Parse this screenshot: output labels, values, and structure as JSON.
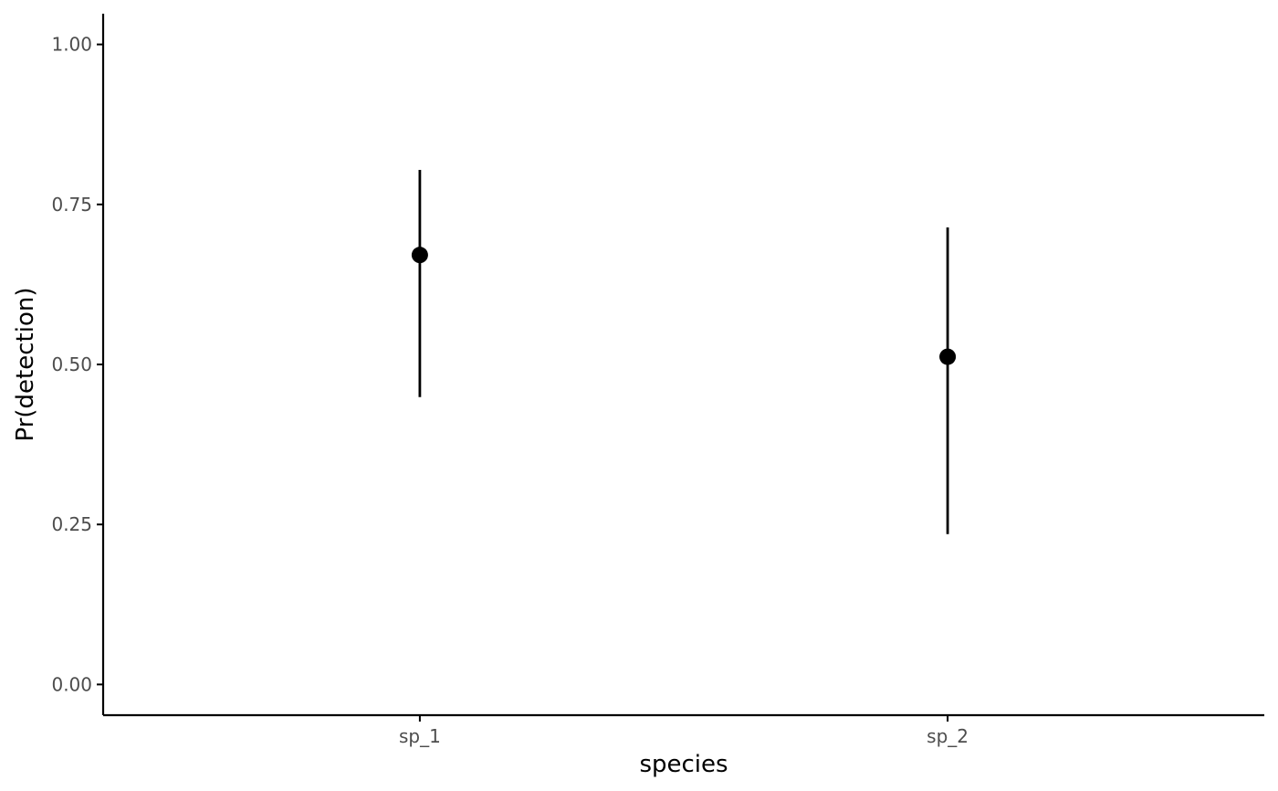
{
  "chart_data": {
    "type": "scatter",
    "title": "",
    "xlabel": "species",
    "ylabel": "Pr(detection)",
    "categories": [
      "sp_1",
      "sp_2"
    ],
    "series": [
      {
        "points": [
          {
            "x": "sp_1",
            "y": 0.671,
            "lower": 0.449,
            "upper": 0.804
          },
          {
            "x": "sp_2",
            "y": 0.512,
            "lower": 0.235,
            "upper": 0.714
          }
        ]
      }
    ],
    "yticks": [
      "0.00",
      "0.25",
      "0.50",
      "0.75",
      "1.00"
    ],
    "ylim": [
      -0.048,
      1.048
    ],
    "grid": false,
    "legend": "none",
    "colors": {
      "mark": "#000000",
      "axis": "#000000",
      "tick_label": "#4d4d4d"
    }
  }
}
